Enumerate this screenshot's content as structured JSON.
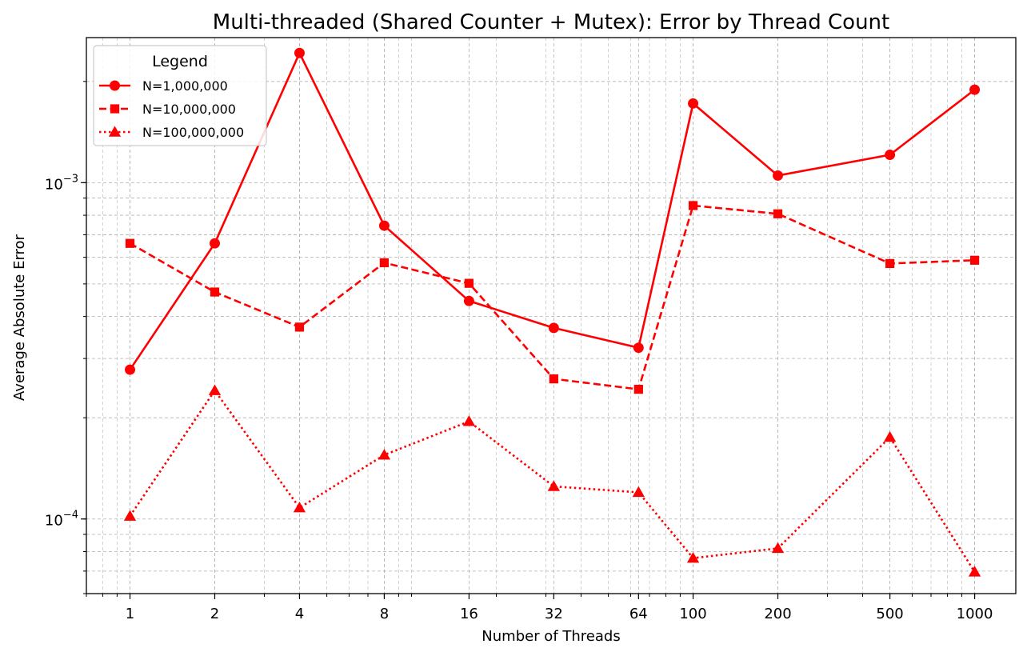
{
  "chart_data": {
    "type": "line",
    "title": "Multi-threaded (Shared Counter + Mutex): Error by Thread Count",
    "xlabel": "Number of Threads",
    "ylabel": "Average Absolute Error",
    "xscale": "log",
    "yscale": "log",
    "x": [
      1,
      2,
      4,
      8,
      16,
      32,
      64,
      100,
      200,
      500,
      1000
    ],
    "xtick_labels": [
      "1",
      "2",
      "4",
      "8",
      "16",
      "32",
      "64",
      "100",
      "200",
      "500",
      "1000"
    ],
    "xlim": [
      0.7,
      1400
    ],
    "ylim": [
      6e-05,
      0.0027
    ],
    "ytick_labels": [
      {
        "value": 0.001,
        "base": "10",
        "exp": "−3"
      },
      {
        "value": 0.0001,
        "base": "10",
        "exp": "−4"
      }
    ],
    "grid": true,
    "legend": {
      "title": "Legend",
      "placement": "top-left"
    },
    "series": [
      {
        "name": "N=1,000,000",
        "color": "#ff0000",
        "linestyle": "solid",
        "marker": "circle",
        "values": [
          0.000278,
          0.00066,
          0.00243,
          0.000745,
          0.000445,
          0.00037,
          0.000323,
          0.00172,
          0.00105,
          0.00121,
          0.00189
        ]
      },
      {
        "name": "N=10,000,000",
        "color": "#ff0000",
        "linestyle": "dashed",
        "marker": "square",
        "values": [
          0.00066,
          0.000473,
          0.000372,
          0.000578,
          0.000502,
          0.000261,
          0.000243,
          0.000855,
          0.000808,
          0.000575,
          0.000588
        ]
      },
      {
        "name": "N=100,000,000",
        "color": "#ff0000",
        "linestyle": "dotted",
        "marker": "triangle",
        "values": [
          0.000102,
          0.000241,
          0.000108,
          0.000155,
          0.000195,
          0.000125,
          0.00012,
          7.65e-05,
          8.18e-05,
          0.000175,
          6.96e-05
        ]
      }
    ]
  }
}
